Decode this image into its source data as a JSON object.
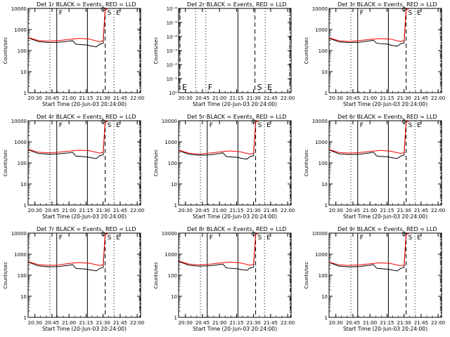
{
  "x_ticks": [
    "20:30",
    "20:45",
    "21:00",
    "21:15",
    "21:30",
    "21:45",
    "22:00"
  ],
  "x_label": "Start Time (20-Jun-03 20:24:00)",
  "y_label": "Counts/sec",
  "y_ticks_counts": [
    "1",
    "10",
    "100",
    "1000",
    "10000"
  ],
  "y_ticks_empty": [
    "10⁰",
    "10⁻¹",
    "10⁻²",
    "10⁻³",
    "10⁻⁴",
    "10⁻⁵",
    "10⁻⁶"
  ],
  "colors": {
    "events": "#000000",
    "lld": "#ff0000"
  },
  "chart_data": [
    {
      "type": "line",
      "title": "Det 1r  BLACK = Events, RED = LLD",
      "empty": false,
      "xrange": [
        20.4,
        22.05
      ],
      "ylim": [
        1,
        10000
      ],
      "ylog": true,
      "series": [
        {
          "name": "Events",
          "x": [
            20.4,
            20.55,
            20.7,
            20.85,
            21.0,
            21.05,
            21.1,
            21.28,
            21.3,
            21.4,
            21.45,
            21.5,
            21.53,
            21.57
          ],
          "values": [
            400,
            270,
            240,
            250,
            280,
            300,
            200,
            180,
            170,
            150,
            200,
            220,
            9000,
            9500
          ]
        },
        {
          "name": "LLD",
          "x": [
            20.4,
            20.55,
            20.7,
            20.85,
            21.0,
            21.15,
            21.3,
            21.45,
            21.5,
            21.53,
            21.57
          ],
          "values": [
            420,
            300,
            280,
            300,
            340,
            380,
            350,
            260,
            300,
            9000,
            9500
          ]
        }
      ],
      "vlines": [
        {
          "x": 20.72,
          "style": "dotted",
          "label": ""
        },
        {
          "x": 20.82,
          "style": "solid",
          "label": "F"
        },
        {
          "x": 21.27,
          "style": "solid",
          "label": ""
        },
        {
          "x": 21.53,
          "style": "dashed",
          "label": "S"
        },
        {
          "x": 21.66,
          "style": "dotted",
          "label": "E"
        },
        {
          "x": 22.04,
          "style": "dashdot",
          "label": ""
        }
      ]
    },
    {
      "type": "line",
      "title": "Det 2r  BLACK = Events, RED = LLD",
      "empty": true,
      "xrange": [
        20.4,
        22.05
      ],
      "series": [],
      "vlines": [
        {
          "x": 20.42,
          "style": "dashed",
          "label": "E"
        },
        {
          "x": 20.65,
          "style": "dotted",
          "label": ""
        },
        {
          "x": 20.8,
          "style": "dotted",
          "label": "F"
        },
        {
          "x": 21.27,
          "style": "solid",
          "label": ""
        },
        {
          "x": 21.52,
          "style": "dashed",
          "label": "S"
        },
        {
          "x": 21.67,
          "style": "dotted",
          "label": "E"
        },
        {
          "x": 22.03,
          "style": "dashdot",
          "label": ""
        }
      ]
    },
    {
      "type": "line",
      "title": "Det 3r  BLACK = Events, RED = LLD",
      "empty": false,
      "xrange": [
        20.4,
        22.05
      ],
      "ylim": [
        1,
        10000
      ],
      "ylog": true,
      "series": [
        {
          "name": "Events",
          "x": [
            20.4,
            20.55,
            20.7,
            20.85,
            21.0,
            21.05,
            21.1,
            21.28,
            21.3,
            21.4,
            21.45,
            21.5,
            21.53,
            21.57
          ],
          "values": [
            380,
            260,
            240,
            250,
            290,
            310,
            220,
            200,
            180,
            160,
            210,
            230,
            9000,
            9500
          ]
        },
        {
          "name": "LLD",
          "x": [
            20.4,
            20.55,
            20.7,
            20.85,
            21.0,
            21.15,
            21.3,
            21.45,
            21.5,
            21.53,
            21.57
          ],
          "values": [
            400,
            290,
            270,
            300,
            340,
            370,
            350,
            270,
            300,
            9000,
            9500
          ]
        }
      ],
      "vlines": [
        {
          "x": 20.72,
          "style": "dotted",
          "label": ""
        },
        {
          "x": 20.82,
          "style": "solid",
          "label": "F"
        },
        {
          "x": 21.27,
          "style": "solid",
          "label": ""
        },
        {
          "x": 21.53,
          "style": "dashed",
          "label": "S"
        },
        {
          "x": 21.66,
          "style": "dotted",
          "label": "E"
        },
        {
          "x": 22.04,
          "style": "dashdot",
          "label": ""
        }
      ]
    },
    {
      "type": "line",
      "title": "Det 4r  BLACK = Events, RED = LLD",
      "empty": false,
      "xrange": [
        20.4,
        22.05
      ],
      "ylim": [
        1,
        10000
      ],
      "ylog": true,
      "series": [
        {
          "name": "Events",
          "x": [
            20.4,
            20.55,
            20.7,
            20.85,
            21.0,
            21.05,
            21.1,
            21.28,
            21.3,
            21.4,
            21.45,
            21.5,
            21.53,
            21.57
          ],
          "values": [
            420,
            280,
            260,
            270,
            300,
            320,
            210,
            190,
            180,
            160,
            220,
            240,
            9000,
            9500
          ]
        },
        {
          "name": "LLD",
          "x": [
            20.4,
            20.55,
            20.7,
            20.85,
            21.0,
            21.15,
            21.3,
            21.45,
            21.5,
            21.53,
            21.57
          ],
          "values": [
            440,
            320,
            300,
            320,
            360,
            400,
            380,
            290,
            320,
            9000,
            9500
          ]
        }
      ],
      "vlines": [
        {
          "x": 20.72,
          "style": "dotted",
          "label": ""
        },
        {
          "x": 20.82,
          "style": "solid",
          "label": "F"
        },
        {
          "x": 21.27,
          "style": "solid",
          "label": ""
        },
        {
          "x": 21.53,
          "style": "dashed",
          "label": "S"
        },
        {
          "x": 21.66,
          "style": "dotted",
          "label": "E"
        },
        {
          "x": 22.04,
          "style": "dashdot",
          "label": ""
        }
      ]
    },
    {
      "type": "line",
      "title": "Det 5r  BLACK = Events, RED = LLD",
      "empty": false,
      "xrange": [
        20.4,
        22.05
      ],
      "ylim": [
        1,
        10000
      ],
      "ylog": true,
      "series": [
        {
          "name": "Events",
          "x": [
            20.4,
            20.55,
            20.7,
            20.85,
            21.0,
            21.05,
            21.1,
            21.28,
            21.3,
            21.4,
            21.45,
            21.5,
            21.53,
            21.57
          ],
          "values": [
            380,
            260,
            230,
            240,
            280,
            300,
            200,
            180,
            170,
            150,
            200,
            220,
            9000,
            9500
          ]
        },
        {
          "name": "LLD",
          "x": [
            20.4,
            20.55,
            20.7,
            20.85,
            21.0,
            21.15,
            21.3,
            21.45,
            21.5,
            21.53,
            21.57
          ],
          "values": [
            400,
            290,
            260,
            290,
            330,
            370,
            340,
            260,
            290,
            9000,
            9500
          ]
        }
      ],
      "vlines": [
        {
          "x": 20.72,
          "style": "dotted",
          "label": ""
        },
        {
          "x": 20.82,
          "style": "solid",
          "label": "F"
        },
        {
          "x": 21.27,
          "style": "solid",
          "label": ""
        },
        {
          "x": 21.53,
          "style": "dashed",
          "label": "S"
        },
        {
          "x": 21.66,
          "style": "dotted",
          "label": "E"
        },
        {
          "x": 22.04,
          "style": "dashdot",
          "label": ""
        }
      ]
    },
    {
      "type": "line",
      "title": "Det 6r  BLACK = Events, RED = LLD",
      "empty": false,
      "xrange": [
        20.4,
        22.05
      ],
      "ylim": [
        1,
        10000
      ],
      "ylog": true,
      "series": [
        {
          "name": "Events",
          "x": [
            20.4,
            20.55,
            20.7,
            20.85,
            21.0,
            21.05,
            21.1,
            21.28,
            21.3,
            21.4,
            21.45,
            21.5,
            21.53,
            21.57
          ],
          "values": [
            410,
            270,
            250,
            260,
            300,
            320,
            210,
            190,
            180,
            160,
            210,
            230,
            9000,
            9500
          ]
        },
        {
          "name": "LLD",
          "x": [
            20.4,
            20.55,
            20.7,
            20.85,
            21.0,
            21.15,
            21.3,
            21.45,
            21.5,
            21.53,
            21.57
          ],
          "values": [
            430,
            310,
            290,
            310,
            350,
            390,
            360,
            280,
            310,
            9000,
            9500
          ]
        }
      ],
      "vlines": [
        {
          "x": 20.72,
          "style": "dotted",
          "label": ""
        },
        {
          "x": 20.82,
          "style": "solid",
          "label": "F"
        },
        {
          "x": 21.27,
          "style": "solid",
          "label": ""
        },
        {
          "x": 21.53,
          "style": "dashed",
          "label": "S"
        },
        {
          "x": 21.66,
          "style": "dotted",
          "label": "E"
        },
        {
          "x": 22.04,
          "style": "dashdot",
          "label": ""
        }
      ]
    },
    {
      "type": "line",
      "title": "Det 7r  BLACK = Events, RED = LLD",
      "empty": false,
      "xrange": [
        20.4,
        22.05
      ],
      "ylim": [
        1,
        10000
      ],
      "ylog": true,
      "series": [
        {
          "name": "Events",
          "x": [
            20.4,
            20.55,
            20.7,
            20.85,
            21.0,
            21.05,
            21.1,
            21.28,
            21.3,
            21.4,
            21.45,
            21.5,
            21.53,
            21.57
          ],
          "values": [
            420,
            280,
            250,
            260,
            300,
            320,
            210,
            190,
            180,
            160,
            210,
            230,
            9000,
            9500
          ]
        },
        {
          "name": "LLD",
          "x": [
            20.4,
            20.55,
            20.7,
            20.85,
            21.0,
            21.15,
            21.3,
            21.45,
            21.5,
            21.53,
            21.57
          ],
          "values": [
            440,
            320,
            290,
            310,
            360,
            400,
            370,
            290,
            320,
            9000,
            9500
          ]
        }
      ],
      "vlines": [
        {
          "x": 20.72,
          "style": "dotted",
          "label": ""
        },
        {
          "x": 20.82,
          "style": "solid",
          "label": "F"
        },
        {
          "x": 21.27,
          "style": "solid",
          "label": ""
        },
        {
          "x": 21.53,
          "style": "dashed",
          "label": "S"
        },
        {
          "x": 21.66,
          "style": "dotted",
          "label": "E"
        },
        {
          "x": 22.04,
          "style": "dashdot",
          "label": ""
        }
      ]
    },
    {
      "type": "line",
      "title": "Det 8r  BLACK = Events, RED = LLD",
      "empty": false,
      "xrange": [
        20.4,
        22.05
      ],
      "ylim": [
        1,
        10000
      ],
      "ylog": true,
      "series": [
        {
          "name": "Events",
          "x": [
            20.4,
            20.55,
            20.7,
            20.85,
            21.0,
            21.05,
            21.1,
            21.28,
            21.3,
            21.4,
            21.45,
            21.5,
            21.53,
            21.57
          ],
          "values": [
            450,
            300,
            270,
            280,
            320,
            340,
            220,
            200,
            190,
            170,
            220,
            240,
            9000,
            9500
          ]
        },
        {
          "name": "LLD",
          "x": [
            20.4,
            20.55,
            20.7,
            20.85,
            21.0,
            21.15,
            21.3,
            21.45,
            21.5,
            21.53,
            21.57
          ],
          "values": [
            470,
            340,
            310,
            330,
            380,
            420,
            390,
            300,
            330,
            9000,
            9500
          ]
        }
      ],
      "vlines": [
        {
          "x": 20.72,
          "style": "dotted",
          "label": ""
        },
        {
          "x": 20.82,
          "style": "solid",
          "label": "F"
        },
        {
          "x": 21.27,
          "style": "solid",
          "label": ""
        },
        {
          "x": 21.53,
          "style": "dashed",
          "label": "S"
        },
        {
          "x": 21.66,
          "style": "dotted",
          "label": "E"
        },
        {
          "x": 22.04,
          "style": "dashdot",
          "label": ""
        }
      ]
    },
    {
      "type": "line",
      "title": "Det 9r  BLACK = Events, RED = LLD",
      "empty": false,
      "xrange": [
        20.4,
        22.05
      ],
      "ylim": [
        1,
        10000
      ],
      "ylog": true,
      "series": [
        {
          "name": "Events",
          "x": [
            20.4,
            20.55,
            20.7,
            20.85,
            21.0,
            21.05,
            21.1,
            21.28,
            21.3,
            21.4,
            21.45,
            21.5,
            21.53,
            21.57
          ],
          "values": [
            400,
            270,
            250,
            260,
            300,
            320,
            210,
            190,
            180,
            160,
            210,
            230,
            9000,
            9500
          ]
        },
        {
          "name": "LLD",
          "x": [
            20.4,
            20.55,
            20.7,
            20.85,
            21.0,
            21.15,
            21.3,
            21.45,
            21.5,
            21.53,
            21.57
          ],
          "values": [
            420,
            310,
            290,
            310,
            350,
            390,
            360,
            280,
            310,
            9000,
            9500
          ]
        }
      ],
      "vlines": [
        {
          "x": 20.72,
          "style": "dotted",
          "label": ""
        },
        {
          "x": 20.82,
          "style": "solid",
          "label": "F"
        },
        {
          "x": 21.27,
          "style": "solid",
          "label": ""
        },
        {
          "x": 21.53,
          "style": "dashed",
          "label": "S"
        },
        {
          "x": 21.66,
          "style": "dotted",
          "label": "E"
        },
        {
          "x": 22.04,
          "style": "dashdot",
          "label": ""
        }
      ]
    }
  ]
}
